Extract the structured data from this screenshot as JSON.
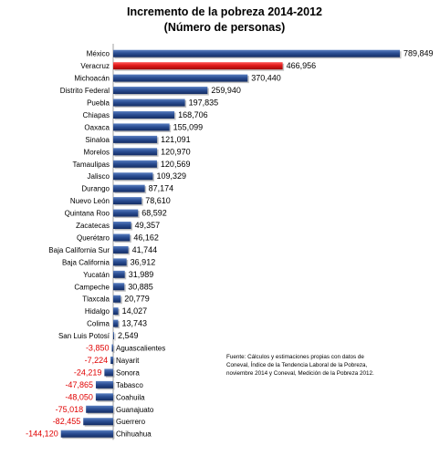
{
  "chart_data": {
    "type": "bar",
    "orientation": "horizontal",
    "title": "Incremento de la pobreza 2014-2012",
    "subtitle": "(Número de personas)",
    "categories": [
      "México",
      "Veracruz",
      "Michoacán",
      "Distrito Federal",
      "Puebla",
      "Chiapas",
      "Oaxaca",
      "Sinaloa",
      "Morelos",
      "Tamaulipas",
      "Jalisco",
      "Durango",
      "Nuevo León",
      "Quintana Roo",
      "Zacatecas",
      "Querétaro",
      "Baja California Sur",
      "Baja California",
      "Yucatán",
      "Campeche",
      "Tlaxcala",
      "Hidalgo",
      "Colima",
      "San Luis Potosí",
      "Aguascalientes",
      "Nayarit",
      "Sonora",
      "Tabasco",
      "Coahuila",
      "Guanajuato",
      "Guerrero",
      "Chihuahua"
    ],
    "values": [
      789849,
      466956,
      370440,
      259940,
      197835,
      168706,
      155099,
      121091,
      120970,
      120569,
      109329,
      87174,
      78610,
      68592,
      49357,
      46162,
      41744,
      36912,
      31989,
      30885,
      20779,
      14027,
      13743,
      2549,
      -3850,
      -7224,
      -24219,
      -47865,
      -48050,
      -75018,
      -82455,
      -144120
    ],
    "value_labels": [
      "789,849",
      "466,956",
      "370,440",
      "259,940",
      "197,835",
      "168,706",
      "155,099",
      "121,091",
      "120,970",
      "120,569",
      "109,329",
      "87,174",
      "78,610",
      "68,592",
      "49,357",
      "46,162",
      "41,744",
      "36,912",
      "31,989",
      "30,885",
      "20,779",
      "14,027",
      "13,743",
      "2,549",
      "-3,850",
      "-7,224",
      "-24,219",
      "-47,865",
      "-48,050",
      "-75,018",
      "-82,455",
      "-144,120"
    ],
    "highlight": "Veracruz",
    "colors": {
      "bar": "#1f3d7a",
      "highlight": "#e01818",
      "negative_label": "#e00000"
    },
    "xlim": [
      -144120,
      789849
    ],
    "grid": false,
    "legend": "none"
  },
  "source_note": [
    "Fuente: Cálculos y estimaciones propias con datos de",
    "Coneval, Índice de la Tendencia Laboral de la Pobreza,",
    "noviembre 2014 y Coneval, Medición de la Pobreza 2012."
  ]
}
